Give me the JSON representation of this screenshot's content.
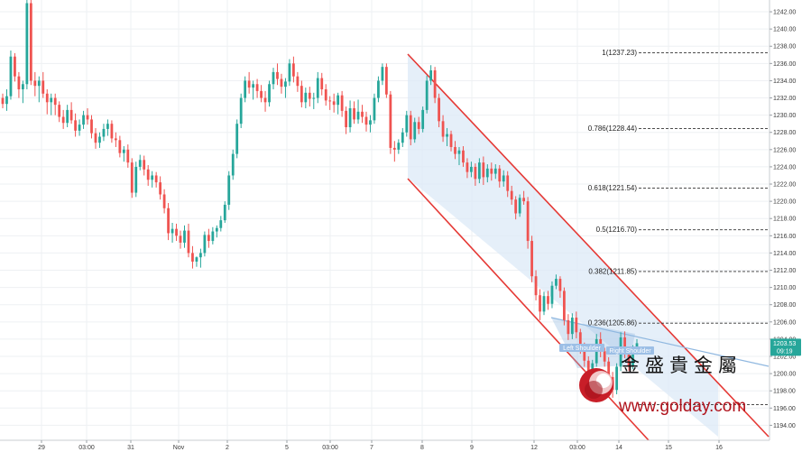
{
  "chart_data": {
    "type": "candlestick",
    "y_axis": {
      "min": 1192,
      "max": 1243,
      "ticks": [
        1194.0,
        1196.0,
        1198.0,
        1200.0,
        1202.0,
        1204.0,
        1206.0,
        1208.0,
        1210.0,
        1212.0,
        1214.0,
        1216.0,
        1218.0,
        1220.0,
        1222.0,
        1224.0,
        1226.0,
        1228.0,
        1230.0,
        1232.0,
        1234.0,
        1236.0,
        1238.0,
        1240.0,
        1242.0
      ],
      "tick_labels": [
        "1194.00",
        "1196.00",
        "1198.00",
        "1200.00",
        "1202.00",
        "1204.00",
        "1206.00",
        "1208.00",
        "1210.00",
        "1212.00",
        "1214.00",
        "1216.00",
        "1218.00",
        "1220.00",
        "1222.00",
        "1224.00",
        "1226.00",
        "1228.00",
        "1230.00",
        "1232.00",
        "1234.00",
        "1236.00",
        "1238.00",
        "1240.00",
        "1242.00"
      ],
      "partial_bottom_label": "1192.00"
    },
    "x_axis": {
      "tick_labels": [
        "29",
        "03:00",
        "31",
        "Nov",
        "2",
        "5",
        "03:00",
        "7",
        "8",
        "9",
        "12",
        "03:00",
        "14",
        "15",
        "16"
      ]
    },
    "last_price": "1203.53",
    "countdown": "09:19",
    "fibonacci": [
      {
        "label": "1(1237.23)",
        "value": 1237.23
      },
      {
        "label": "0.786(1228.44)",
        "value": 1228.44
      },
      {
        "label": "0.618(1221.54)",
        "value": 1221.54
      },
      {
        "label": "0.5(1216.70)",
        "value": 1216.7
      },
      {
        "label": "0.382(1211.85)",
        "value": 1211.85
      },
      {
        "label": "0.236(1205.86)",
        "value": 1205.86
      }
    ],
    "fib_extra_level": 1196.4,
    "patterns": [
      "Left Shoulder",
      "Right Shoulder"
    ],
    "grid": true,
    "colors": {
      "up": "#26a69a",
      "down": "#ef5350",
      "channel": "#e53935",
      "channel_fill": "#dce9f7",
      "neckline": "#90b8e0",
      "fib": "#333333",
      "label_bg": "#9cbfe6",
      "price_tag": "#26a69a",
      "watermark_red": "#b0121b"
    },
    "candles": [
      [
        1232,
        1232.5,
        1230.8,
        1231.3
      ],
      [
        1231.3,
        1233,
        1230.5,
        1232.2
      ],
      [
        1232.2,
        1237.5,
        1231.8,
        1236.8
      ],
      [
        1236.8,
        1237.2,
        1233.9,
        1234.5
      ],
      [
        1234.5,
        1235,
        1232,
        1233
      ],
      [
        1233,
        1234,
        1231.4,
        1233.6
      ],
      [
        1233.6,
        1244,
        1233,
        1243
      ],
      [
        1243,
        1243.5,
        1233.5,
        1234
      ],
      [
        1234,
        1235,
        1232.2,
        1233.4
      ],
      [
        1233.4,
        1234.5,
        1231.5,
        1234
      ],
      [
        1234,
        1235,
        1232,
        1232.5
      ],
      [
        1232.5,
        1233,
        1230.1,
        1231.5
      ],
      [
        1231.5,
        1232.5,
        1230,
        1232
      ],
      [
        1232,
        1232.5,
        1230,
        1231.2
      ],
      [
        1231.2,
        1231.6,
        1229.2,
        1229.8
      ],
      [
        1229.8,
        1230.6,
        1228.4,
        1229.1
      ],
      [
        1229.1,
        1231.2,
        1228.6,
        1230.6
      ],
      [
        1230.6,
        1231.5,
        1229,
        1229.4
      ],
      [
        1229.4,
        1230.2,
        1227.5,
        1228.2
      ],
      [
        1228.2,
        1229.5,
        1227.6,
        1228.9
      ],
      [
        1228.9,
        1230.5,
        1228.4,
        1230
      ],
      [
        1230,
        1230.8,
        1228.9,
        1229.5
      ],
      [
        1229.5,
        1230,
        1227.3,
        1227.9
      ],
      [
        1227.9,
        1228.5,
        1226.1,
        1226.8
      ],
      [
        1226.8,
        1228,
        1226.2,
        1227.5
      ],
      [
        1227.5,
        1229,
        1227,
        1228.4
      ],
      [
        1228.4,
        1229.5,
        1227.6,
        1229
      ],
      [
        1229,
        1229.4,
        1226.8,
        1227.3
      ],
      [
        1227.3,
        1228,
        1226.3,
        1227.1
      ],
      [
        1227.1,
        1227.6,
        1225.1,
        1225.6
      ],
      [
        1225.6,
        1226.4,
        1224.6,
        1226
      ],
      [
        1226,
        1226.6,
        1223.9,
        1224.5
      ],
      [
        1224.5,
        1225,
        1220.4,
        1221
      ],
      [
        1221,
        1224.6,
        1220.5,
        1224
      ],
      [
        1224,
        1225.4,
        1223.6,
        1224.8
      ],
      [
        1224.8,
        1225.3,
        1223,
        1223.7
      ],
      [
        1223.7,
        1224.2,
        1221.8,
        1222.5
      ],
      [
        1222.5,
        1223.5,
        1221.6,
        1223
      ],
      [
        1223,
        1223.4,
        1221.6,
        1222.2
      ],
      [
        1222.2,
        1222.9,
        1220.2,
        1220.8
      ],
      [
        1220.8,
        1221.4,
        1218.6,
        1219.2
      ],
      [
        1219.2,
        1219.8,
        1215.5,
        1216.3
      ],
      [
        1216.3,
        1217.5,
        1215.2,
        1216.8
      ],
      [
        1216.8,
        1217.4,
        1215.4,
        1216
      ],
      [
        1216,
        1216.6,
        1214.5,
        1215.2
      ],
      [
        1215.2,
        1217.2,
        1214.6,
        1216.6
      ],
      [
        1216.6,
        1217.4,
        1213.5,
        1214
      ],
      [
        1214,
        1214.8,
        1212.2,
        1213
      ],
      [
        1213,
        1213.6,
        1212.4,
        1213.5
      ],
      [
        1213.5,
        1214.5,
        1212.3,
        1214
      ],
      [
        1214,
        1216.5,
        1213.6,
        1216.1
      ],
      [
        1216.1,
        1216.8,
        1214.6,
        1215.4
      ],
      [
        1215.4,
        1217,
        1215,
        1216.5
      ],
      [
        1216.5,
        1217.2,
        1215.8,
        1216.9
      ],
      [
        1216.9,
        1218.3,
        1216.5,
        1217.8
      ],
      [
        1217.8,
        1220,
        1217.5,
        1219.6
      ],
      [
        1219.6,
        1223.5,
        1219,
        1223
      ],
      [
        1223,
        1226,
        1222.5,
        1225.5
      ],
      [
        1225.5,
        1229.5,
        1225,
        1229
      ],
      [
        1229,
        1232.5,
        1228.5,
        1232
      ],
      [
        1232,
        1234.5,
        1231.5,
        1234
      ],
      [
        1234,
        1235,
        1232.5,
        1233.2
      ],
      [
        1233.2,
        1234,
        1231.8,
        1233.6
      ],
      [
        1233.6,
        1234.2,
        1232,
        1232.8
      ],
      [
        1232.8,
        1233.5,
        1231.5,
        1232
      ],
      [
        1232,
        1232.8,
        1230.4,
        1231.5
      ],
      [
        1231.5,
        1234,
        1231,
        1233.6
      ],
      [
        1233.6,
        1235.5,
        1233,
        1235
      ],
      [
        1235,
        1236,
        1233.5,
        1234.2
      ],
      [
        1234.2,
        1234.8,
        1232.5,
        1233.3
      ],
      [
        1233.3,
        1234.3,
        1232,
        1233.9
      ],
      [
        1233.9,
        1236.5,
        1233.4,
        1236
      ],
      [
        1236,
        1236.8,
        1233.8,
        1234.5
      ],
      [
        1234.5,
        1235,
        1232.7,
        1233.4
      ],
      [
        1233.4,
        1234,
        1230.9,
        1231.5
      ],
      [
        1231.5,
        1233.2,
        1230.8,
        1232.6
      ],
      [
        1232.6,
        1233.3,
        1231,
        1231.9
      ],
      [
        1231.9,
        1232.6,
        1230.7,
        1232
      ],
      [
        1232,
        1235,
        1231.4,
        1234.3
      ],
      [
        1234.3,
        1234.9,
        1232.3,
        1233
      ],
      [
        1233,
        1233.6,
        1231.1,
        1231.7
      ],
      [
        1231.7,
        1232.2,
        1230.6,
        1231.6
      ],
      [
        1231.6,
        1232.5,
        1230.3,
        1231.2
      ],
      [
        1231.2,
        1232.6,
        1230.1,
        1232.3
      ],
      [
        1232.3,
        1232.8,
        1229.8,
        1230.5
      ],
      [
        1230.5,
        1231,
        1227.8,
        1228.6
      ],
      [
        1228.6,
        1231.7,
        1228,
        1230.8
      ],
      [
        1230.8,
        1231.6,
        1229,
        1229.5
      ],
      [
        1229.5,
        1231.8,
        1229,
        1230.4
      ],
      [
        1230.4,
        1231.2,
        1229.1,
        1229.8
      ],
      [
        1229.8,
        1230.4,
        1228.1,
        1228.9
      ],
      [
        1228.9,
        1230,
        1228,
        1229.4
      ],
      [
        1229.4,
        1232.5,
        1229,
        1232
      ],
      [
        1232,
        1234.5,
        1231.5,
        1234
      ],
      [
        1234,
        1236,
        1233.5,
        1235.6
      ],
      [
        1235.6,
        1236,
        1232,
        1232.4
      ],
      [
        1232.4,
        1232.8,
        1225.5,
        1226.2
      ],
      [
        1226.2,
        1227,
        1224.6,
        1226
      ],
      [
        1226,
        1227.2,
        1225.5,
        1226.8
      ],
      [
        1226.8,
        1228.5,
        1226.3,
        1228
      ],
      [
        1228,
        1230.5,
        1227.5,
        1230
      ],
      [
        1230,
        1230.5,
        1226.5,
        1227.2
      ],
      [
        1227.2,
        1229.7,
        1226.8,
        1229.2
      ],
      [
        1229.2,
        1229.8,
        1227.8,
        1228.4
      ],
      [
        1228.4,
        1231,
        1228,
        1230.6
      ],
      [
        1230.6,
        1234.6,
        1230.2,
        1234
      ],
      [
        1234,
        1235.8,
        1233.5,
        1235.2
      ],
      [
        1235.2,
        1235.6,
        1231.4,
        1232
      ],
      [
        1232,
        1232.5,
        1228.6,
        1229.3
      ],
      [
        1229.3,
        1230,
        1226.9,
        1227.5
      ],
      [
        1227.5,
        1228.5,
        1226.4,
        1227.8
      ],
      [
        1227.8,
        1228.2,
        1225.8,
        1226.3
      ],
      [
        1226.3,
        1227,
        1224.9,
        1225.5
      ],
      [
        1225.5,
        1226.3,
        1224.2,
        1225.9
      ],
      [
        1225.9,
        1226.4,
        1224,
        1224.5
      ],
      [
        1224.5,
        1225,
        1222.7,
        1223.4
      ],
      [
        1223.4,
        1224.6,
        1222.8,
        1224
      ],
      [
        1224,
        1224.4,
        1221.8,
        1222.6
      ],
      [
        1222.6,
        1225,
        1222.1,
        1224.5
      ],
      [
        1224.5,
        1225.2,
        1221.9,
        1222.8
      ],
      [
        1222.8,
        1224.3,
        1222.2,
        1223.8
      ],
      [
        1223.8,
        1224.5,
        1222.4,
        1223.2
      ],
      [
        1223.2,
        1224.3,
        1222.6,
        1223.8
      ],
      [
        1223.8,
        1224.2,
        1221.6,
        1222.3
      ],
      [
        1222.3,
        1223.6,
        1221.7,
        1223
      ],
      [
        1223,
        1223.5,
        1220.5,
        1221.2
      ],
      [
        1221.2,
        1221.8,
        1219.6,
        1220.2
      ],
      [
        1220.2,
        1220.6,
        1217.9,
        1218.6
      ],
      [
        1218.6,
        1220.8,
        1218.2,
        1220.4
      ],
      [
        1220.4,
        1221.2,
        1219.6,
        1220
      ],
      [
        1220,
        1220.5,
        1214.5,
        1215.4
      ],
      [
        1215.4,
        1216,
        1210.6,
        1211.3
      ],
      [
        1211.3,
        1212,
        1208.5,
        1209.1
      ],
      [
        1209.1,
        1209.8,
        1206.2,
        1207.2
      ],
      [
        1207.2,
        1209.5,
        1206.8,
        1209
      ],
      [
        1209,
        1209.6,
        1207.4,
        1208.1
      ],
      [
        1208.1,
        1210.7,
        1207.6,
        1210.2
      ],
      [
        1210.2,
        1211.5,
        1209.8,
        1211
      ],
      [
        1211,
        1211.3,
        1208.8,
        1209.6
      ],
      [
        1209.6,
        1210,
        1205.6,
        1206.2
      ],
      [
        1206.2,
        1206.9,
        1203.9,
        1204.6
      ],
      [
        1204.6,
        1207,
        1204,
        1206.5
      ],
      [
        1206.5,
        1207.2,
        1204.1,
        1204.8
      ],
      [
        1204.8,
        1205.2,
        1202.3,
        1203
      ],
      [
        1203,
        1203.6,
        1200.8,
        1201.5
      ],
      [
        1201.5,
        1202,
        1199,
        1199.8
      ],
      [
        1199.8,
        1201.6,
        1199.3,
        1201.2
      ],
      [
        1201.2,
        1204.6,
        1200.8,
        1204
      ],
      [
        1204,
        1204.8,
        1201.9,
        1202.6
      ],
      [
        1202.6,
        1203,
        1200.8,
        1201.4
      ],
      [
        1201.4,
        1201.9,
        1199.1,
        1199.6
      ],
      [
        1199.6,
        1200.2,
        1197.2,
        1198.1
      ],
      [
        1198.1,
        1201.2,
        1197.6,
        1200.8
      ],
      [
        1200.8,
        1204.8,
        1200.3,
        1204.2
      ],
      [
        1204.2,
        1204.9,
        1201.8,
        1202.4
      ],
      [
        1202.4,
        1203,
        1200.3,
        1200.9
      ],
      [
        1200.9,
        1203.3,
        1200.5,
        1202.8
      ],
      [
        1202.8,
        1204,
        1202.2,
        1203.53
      ]
    ]
  }
}
